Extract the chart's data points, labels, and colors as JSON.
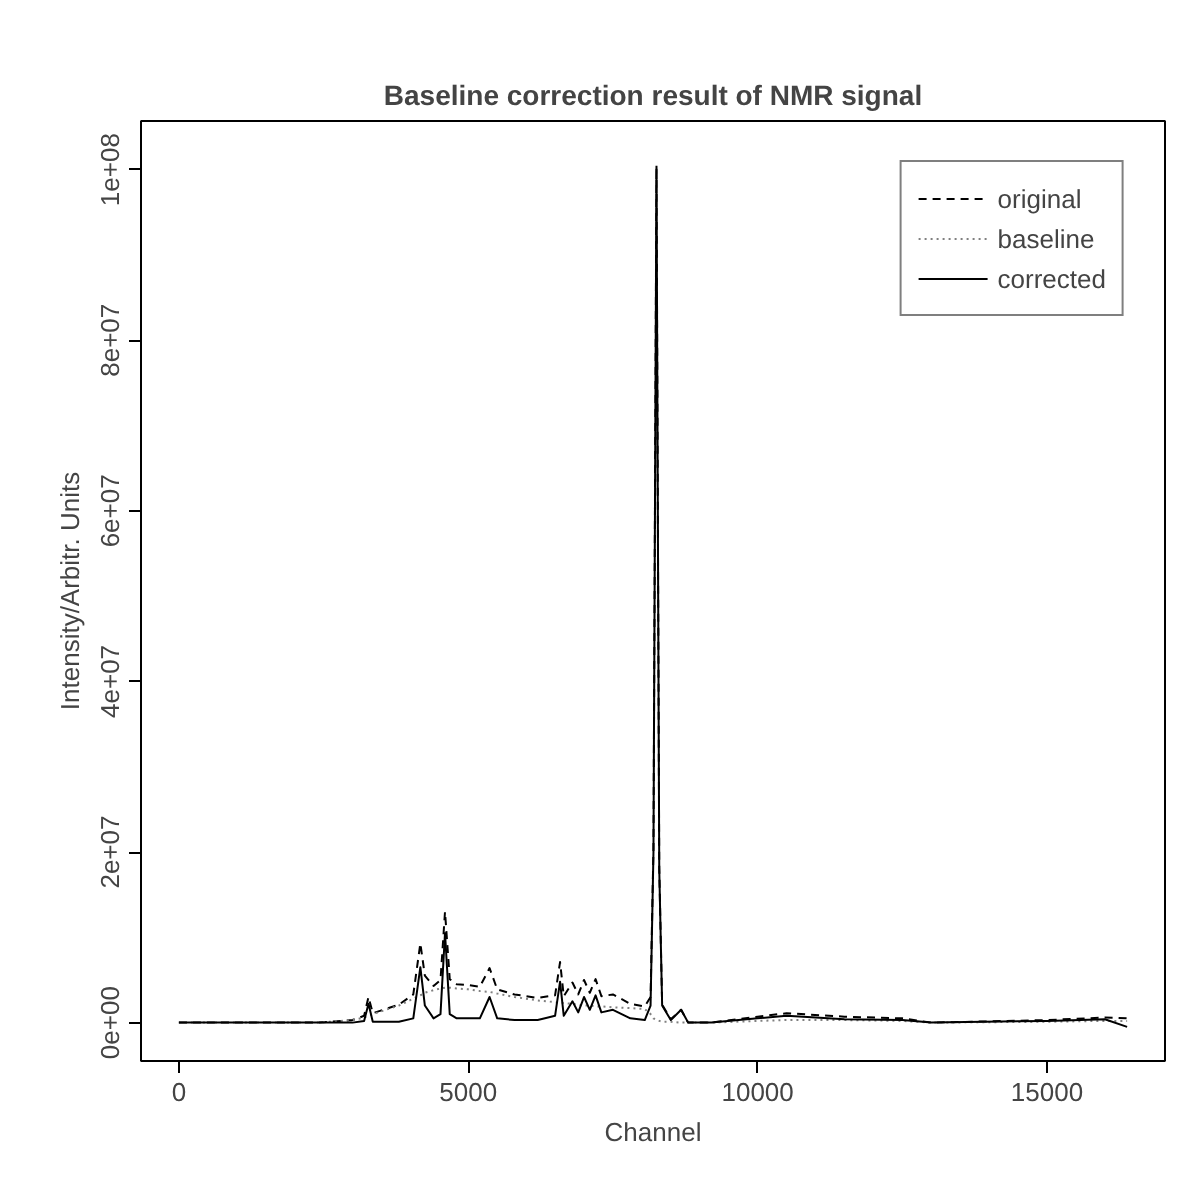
{
  "chart_data": {
    "type": "line",
    "title": "Baseline correction result of NMR signal",
    "xlabel": "Channel",
    "ylabel": "Intensity/Arbitr. Units",
    "x": [
      0,
      2400,
      3000,
      3200,
      3276,
      3350,
      3800,
      4050,
      4172,
      4250,
      4400,
      4520,
      4598,
      4680,
      4800,
      5000,
      5200,
      5368,
      5500,
      5800,
      6200,
      6500,
      6586,
      6650,
      6800,
      6900,
      7000,
      7100,
      7200,
      7300,
      7500,
      7800,
      8050,
      8150,
      8200,
      8252,
      8300,
      8350,
      8500,
      8678,
      8800,
      9200,
      10000,
      10500,
      11500,
      12500,
      13000,
      15000,
      16000,
      16384
    ],
    "series": [
      {
        "name": "original",
        "color": "#000000",
        "line_style": "dashed",
        "values": [
          0,
          0,
          300000.0,
          800000.0,
          3000000.0,
          1100000.0,
          2100000.0,
          3300000.0,
          9300000.0,
          5500000.0,
          4300000.0,
          5000000.0,
          13000000.0,
          5100000.0,
          4500000.0,
          4400000.0,
          4200000.0,
          6400000.0,
          3900000.0,
          3300000.0,
          2900000.0,
          3200000.0,
          7100000.0,
          3100000.0,
          4700000.0,
          3300000.0,
          5000000.0,
          3500000.0,
          5100000.0,
          3100000.0,
          3300000.0,
          2200000.0,
          1900000.0,
          3000000.0,
          20500000.0,
          100500000.0,
          18200000.0,
          2100000.0,
          400000.0,
          1500000.0,
          0,
          0,
          700000.0,
          1100000.0,
          700000.0,
          500000.0,
          0,
          300000.0,
          600000.0,
          500000.0
        ]
      },
      {
        "name": "baseline",
        "color": "#808080",
        "line_style": "dotted",
        "values": [
          0,
          0,
          300000.0,
          600000.0,
          800000.0,
          1000000.0,
          2000000.0,
          2800000.0,
          3200000.0,
          3500000.0,
          3800000.0,
          4000000.0,
          4100000.0,
          4100000.0,
          4000000.0,
          3900000.0,
          3700000.0,
          3600000.0,
          3400000.0,
          3000000.0,
          2600000.0,
          2400000.0,
          2300000.0,
          2300000.0,
          2200000.0,
          2100000.0,
          2000000.0,
          2000000.0,
          1900000.0,
          1900000.0,
          1800000.0,
          1700000.0,
          1600000.0,
          1000000.0,
          500000.0,
          300000.0,
          200000.0,
          100000.0,
          100000.0,
          0,
          0,
          0,
          200000.0,
          300000.0,
          300000.0,
          200000.0,
          0,
          100000.0,
          200000.0,
          200000.0
        ]
      },
      {
        "name": "corrected",
        "color": "#000000",
        "line_style": "solid",
        "values": [
          0,
          0,
          0,
          200000.0,
          2200000.0,
          100000.0,
          100000.0,
          500000.0,
          6500000.0,
          2000000.0,
          500000.0,
          1000000.0,
          10500000.0,
          1000000.0,
          500000.0,
          500000.0,
          500000.0,
          3000000.0,
          500000.0,
          300000.0,
          300000.0,
          800000.0,
          4800000.0,
          800000.0,
          2500000.0,
          1200000.0,
          3000000.0,
          1500000.0,
          3200000.0,
          1200000.0,
          1500000.0,
          500000.0,
          300000.0,
          2000000.0,
          20000000.0,
          100000000.0,
          18000000.0,
          2000000.0,
          300000.0,
          1500000.0,
          0,
          0,
          500000.0,
          800000.0,
          400000.0,
          300000.0,
          0,
          200000.0,
          400000.0,
          -500000.0
        ]
      }
    ],
    "xlim": [
      -655,
      17039
    ],
    "xticks": [
      0,
      5000,
      10000,
      15000
    ],
    "ylim": [
      -4500000.0,
      105700000.0
    ],
    "yticks": [
      {
        "value": 0,
        "label": "0e+00"
      },
      {
        "value": 20000000.0,
        "label": "2e+07"
      },
      {
        "value": 40000000.0,
        "label": "4e+07"
      },
      {
        "value": 60000000.0,
        "label": "6e+07"
      },
      {
        "value": 80000000.0,
        "label": "8e+07"
      },
      {
        "value": 100000000.0,
        "label": "1e+08"
      }
    ],
    "grid": false,
    "legend": "top right"
  }
}
